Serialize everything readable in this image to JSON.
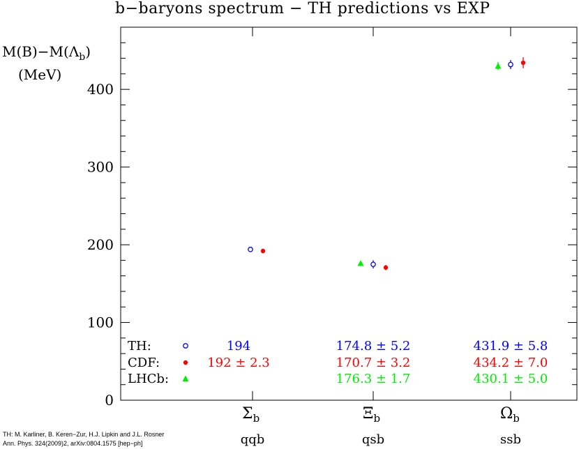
{
  "chart_data": {
    "type": "scatter",
    "title": "b−baryons spectrum − TH predictions vs EXP",
    "ylabel_line1": "M(B)−M(Λ",
    "ylabel_line1_sub": "b",
    "ylabel_line1_end": ")",
    "ylabel_line2": "(MeV)",
    "ylim": [
      0,
      480
    ],
    "yticks": [
      0,
      100,
      200,
      300,
      400
    ],
    "yticks_minor_step": 20,
    "grid": false,
    "categories": [
      {
        "symbol": "Σ",
        "sub": "b",
        "quark": "qqb"
      },
      {
        "symbol": "Ξ",
        "sub": "b",
        "quark": "qsb"
      },
      {
        "symbol": "Ω",
        "sub": "b",
        "quark": "ssb"
      }
    ],
    "series": [
      {
        "name": "TH:",
        "marker": "open-circle",
        "color": "#0000ff",
        "values": [
          194,
          174.8,
          431.9
        ],
        "errors": [
          0,
          5.2,
          5.8
        ],
        "labels": [
          "194",
          "174.8 ± 5.2",
          "431.9 ± 5.8"
        ]
      },
      {
        "name": "CDF:",
        "marker": "filled-circle",
        "color": "#ff0000",
        "values": [
          192,
          170.7,
          434.2
        ],
        "errors": [
          2.3,
          3.2,
          7.0
        ],
        "labels": [
          "192 ± 2.3",
          "170.7 ± 3.2",
          "434.2 ± 7.0"
        ]
      },
      {
        "name": "LHCb:",
        "marker": "triangle",
        "color": "#00ee00",
        "values": [
          null,
          176.3,
          430.1
        ],
        "errors": [
          null,
          1.7,
          5.0
        ],
        "labels": [
          "",
          "176.3 ± 1.7",
          "430.1 ± 5.0"
        ]
      }
    ]
  },
  "reference": {
    "line1": "TH: M. Karliner, B. Keren−Zur, H.J. Lipkin and J.L. Rosner",
    "line2": "Ann. Phys. 324(2009)2, arXiv:0804.1575 [hep−ph]"
  }
}
